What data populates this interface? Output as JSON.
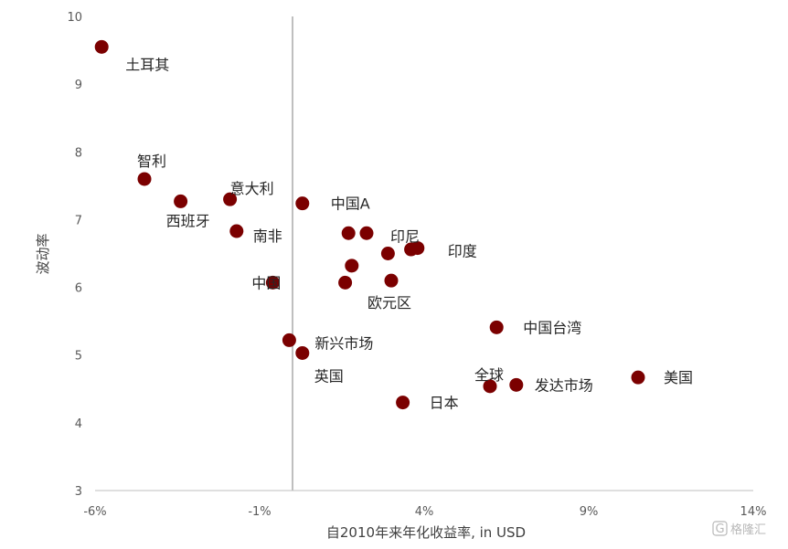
{
  "chart_data": {
    "type": "scatter",
    "xlabel": "自2010年来年化收益率, in USD",
    "ylabel": "波动率",
    "xlim": [
      -6,
      14
    ],
    "ylim": [
      3,
      10
    ],
    "x_ticks": [
      "-6%",
      "-1%",
      "4%",
      "9%",
      "14%"
    ],
    "y_ticks": [
      "3",
      "4",
      "5",
      "6",
      "7",
      "8",
      "9",
      "10"
    ],
    "grid": false,
    "marker_color": "#7b0000",
    "points": [
      {
        "label": "土耳其",
        "x": -5.8,
        "y": 9.55
      },
      {
        "label": "智利",
        "x": -4.5,
        "y": 7.6
      },
      {
        "label": "西班牙",
        "x": -3.4,
        "y": 7.27
      },
      {
        "label": "意大利",
        "x": -1.9,
        "y": 7.3
      },
      {
        "label": "南非",
        "x": -1.7,
        "y": 6.83
      },
      {
        "label": "中国",
        "x": -0.6,
        "y": 6.07
      },
      {
        "label": "中国A",
        "x": 0.3,
        "y": 7.24
      },
      {
        "label": "",
        "x": 1.7,
        "y": 6.8
      },
      {
        "label": "印尼",
        "x": 2.25,
        "y": 6.8
      },
      {
        "label": "",
        "x": 2.9,
        "y": 6.5
      },
      {
        "label": "",
        "x": 3.6,
        "y": 6.56
      },
      {
        "label": "印度",
        "x": 3.8,
        "y": 6.58
      },
      {
        "label": "",
        "x": 1.8,
        "y": 6.32
      },
      {
        "label": "",
        "x": 1.6,
        "y": 6.07
      },
      {
        "label": "欧元区",
        "x": 3.0,
        "y": 6.1
      },
      {
        "label": "新兴市场",
        "x": -0.1,
        "y": 5.22
      },
      {
        "label": "英国",
        "x": 0.3,
        "y": 5.03
      },
      {
        "label": "中国台湾",
        "x": 6.2,
        "y": 5.41
      },
      {
        "label": "日本",
        "x": 3.35,
        "y": 4.3
      },
      {
        "label": "全球",
        "x": 6.0,
        "y": 4.54
      },
      {
        "label": "发达市场",
        "x": 6.8,
        "y": 4.56
      },
      {
        "label": "美国",
        "x": 10.5,
        "y": 4.67
      }
    ]
  },
  "watermark": {
    "glyph": "G",
    "text": "格隆汇"
  }
}
